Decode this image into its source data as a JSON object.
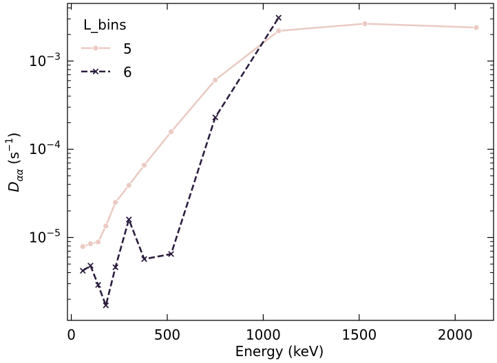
{
  "chart_data": {
    "type": "line",
    "xlabel": "Energy (keV)",
    "ylabel_main": "D",
    "ylabel_sub": "αα",
    "ylabel_unit_open": " (s",
    "ylabel_unit_exp": "−1",
    "ylabel_unit_close": ")",
    "xlim": [
      -20,
      2200
    ],
    "xticks": [
      0,
      500,
      1000,
      1500,
      2000
    ],
    "ylim": [
      1.15e-06,
      0.0045
    ],
    "yscale": "log",
    "yticks": [
      {
        "value": 1e-05,
        "base": "10",
        "exp": "−5"
      },
      {
        "value": 0.0001,
        "base": "10",
        "exp": "−4"
      },
      {
        "value": 0.001,
        "base": "10",
        "exp": "−3"
      }
    ],
    "legend": {
      "title": "L_bins",
      "placement": "top-left"
    },
    "series": [
      {
        "name": "5",
        "color": "#ebcbc3",
        "dash": "solid",
        "marker": "circle",
        "x": [
          60,
          100,
          140,
          180,
          230,
          300,
          380,
          520,
          750,
          1080,
          1530,
          2110
        ],
        "y": [
          7.9e-06,
          8.5e-06,
          8.9e-06,
          1.35e-05,
          2.5e-05,
          3.9e-05,
          6.6e-05,
          0.000158,
          0.00061,
          0.0022,
          0.00265,
          0.0024
        ]
      },
      {
        "name": "6",
        "color": "#2b1d3f",
        "dash": "dashed",
        "marker": "x",
        "x": [
          60,
          100,
          140,
          180,
          230,
          300,
          380,
          520,
          750,
          1080
        ],
        "y": [
          4.2e-06,
          4.8e-06,
          2.9e-06,
          1.7e-06,
          4.6e-06,
          1.6e-05,
          5.7e-06,
          6.5e-06,
          0.00023,
          0.0031
        ]
      }
    ]
  }
}
